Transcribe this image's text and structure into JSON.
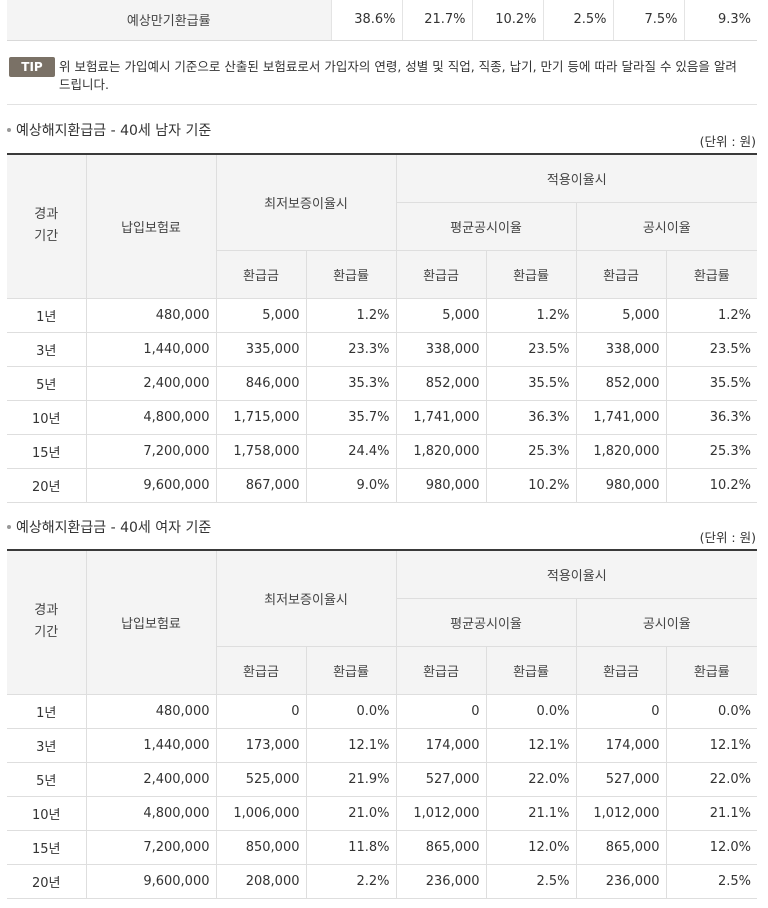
{
  "top_row": {
    "label": "예상만기환급률",
    "values": [
      "38.6%",
      "21.7%",
      "10.2%",
      "2.5%",
      "7.5%",
      "9.3%"
    ]
  },
  "tip": {
    "badge": "TIP",
    "text": "위 보험료는 가입예시 기준으로 산출된 보험료로서 가입자의 연령, 성별 및 직업, 직종, 납기, 만기 등에 따라 달라질 수 있음을 알려 드립니다."
  },
  "headers": {
    "period": "경과\n기간",
    "premium": "납입보험료",
    "min_rate": "최저보증이율시",
    "applied_rate": "적용이율시",
    "avg_rate": "평균공시이율",
    "pub_rate": "공시이율",
    "refund": "환급금",
    "refund_rate": "환급률"
  },
  "sections": [
    {
      "title": "예상해지환급금 - 40세 남자 기준",
      "unit": "(단위 : 원)",
      "rows": [
        [
          "1년",
          "480,000",
          "5,000",
          "1.2%",
          "5,000",
          "1.2%",
          "5,000",
          "1.2%"
        ],
        [
          "3년",
          "1,440,000",
          "335,000",
          "23.3%",
          "338,000",
          "23.5%",
          "338,000",
          "23.5%"
        ],
        [
          "5년",
          "2,400,000",
          "846,000",
          "35.3%",
          "852,000",
          "35.5%",
          "852,000",
          "35.5%"
        ],
        [
          "10년",
          "4,800,000",
          "1,715,000",
          "35.7%",
          "1,741,000",
          "36.3%",
          "1,741,000",
          "36.3%"
        ],
        [
          "15년",
          "7,200,000",
          "1,758,000",
          "24.4%",
          "1,820,000",
          "25.3%",
          "1,820,000",
          "25.3%"
        ],
        [
          "20년",
          "9,600,000",
          "867,000",
          "9.0%",
          "980,000",
          "10.2%",
          "980,000",
          "10.2%"
        ]
      ]
    },
    {
      "title": "예상해지환급금 - 40세 여자 기준",
      "unit": "(단위 : 원)",
      "rows": [
        [
          "1년",
          "480,000",
          "0",
          "0.0%",
          "0",
          "0.0%",
          "0",
          "0.0%"
        ],
        [
          "3년",
          "1,440,000",
          "173,000",
          "12.1%",
          "174,000",
          "12.1%",
          "174,000",
          "12.1%"
        ],
        [
          "5년",
          "2,400,000",
          "525,000",
          "21.9%",
          "527,000",
          "22.0%",
          "527,000",
          "22.0%"
        ],
        [
          "10년",
          "4,800,000",
          "1,006,000",
          "21.0%",
          "1,012,000",
          "21.1%",
          "1,012,000",
          "21.1%"
        ],
        [
          "15년",
          "7,200,000",
          "850,000",
          "11.8%",
          "865,000",
          "12.0%",
          "865,000",
          "12.0%"
        ],
        [
          "20년",
          "9,600,000",
          "208,000",
          "2.2%",
          "236,000",
          "2.5%",
          "236,000",
          "2.5%"
        ]
      ]
    }
  ]
}
